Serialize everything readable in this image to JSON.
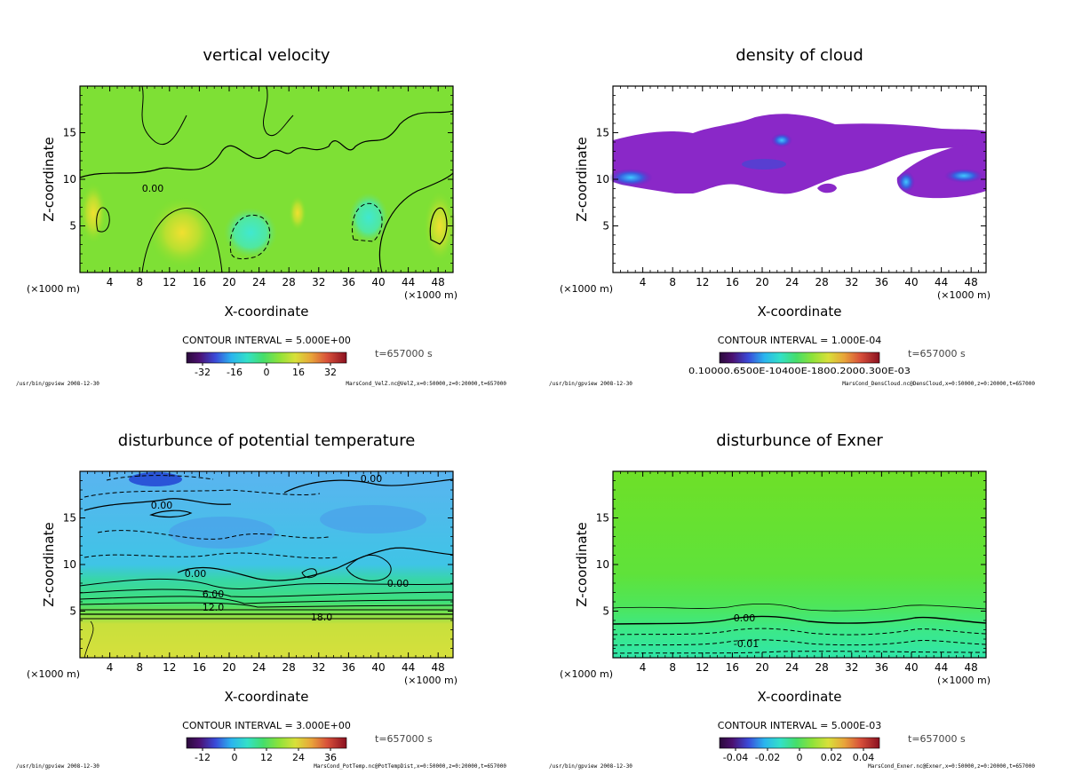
{
  "chart_data": [
    {
      "type": "contour",
      "title": "vertical velocity",
      "xlabel": "X-coordinate",
      "ylabel": "Z-coordinate",
      "x_unit": "(×1000 m)",
      "xlim": [
        0,
        50
      ],
      "ylim": [
        0,
        20
      ],
      "xticks": [
        4,
        8,
        12,
        16,
        20,
        24,
        28,
        32,
        36,
        40,
        44,
        48
      ],
      "yticks": [
        5,
        10,
        15
      ],
      "contour_interval": "CONTOUR INTERVAL = 5.000E+00",
      "contour_labels": [
        "0.00"
      ],
      "colorbar_ticks": [
        "-32",
        "-16",
        "0",
        "16",
        "32"
      ],
      "time": "t=657000 s",
      "footer_left": "/usr/bin/gpview  2008-12-30",
      "footer_right": "MarsCond_VelZ.nc@VelZ,x=0:50000,z=0:20000,t=657000"
    },
    {
      "type": "shaded",
      "title": "density of cloud",
      "xlabel": "X-coordinate",
      "ylabel": "Z-coordinate",
      "x_unit": "(×1000 m)",
      "xlim": [
        0,
        50
      ],
      "ylim": [
        0,
        20
      ],
      "xticks": [
        4,
        8,
        12,
        16,
        20,
        24,
        28,
        32,
        36,
        40,
        44,
        48
      ],
      "yticks": [
        5,
        10,
        15
      ],
      "contour_interval": "CONTOUR INTERVAL = 1.000E-04",
      "colorbar_ticks": [
        "0.10000.6500E-10400E-1800.2000.300E-03"
      ],
      "time": "t=657000 s",
      "footer_left": "/usr/bin/gpview  2008-12-30",
      "footer_right": "MarsCond_DensCloud.nc@DensCloud,x=0:50000,z=0:20000,t=657000"
    },
    {
      "type": "contour",
      "title": "disturbunce of potential temperature",
      "xlabel": "X-coordinate",
      "ylabel": "Z-coordinate",
      "x_unit": "(×1000 m)",
      "xlim": [
        0,
        50
      ],
      "ylim": [
        0,
        20
      ],
      "xticks": [
        4,
        8,
        12,
        16,
        20,
        24,
        28,
        32,
        36,
        40,
        44,
        48
      ],
      "yticks": [
        5,
        10,
        15
      ],
      "contour_interval": "CONTOUR INTERVAL = 3.000E+00",
      "contour_labels": [
        "0.00",
        "0.00",
        "0.00",
        "0.00",
        "6.00",
        "12.0",
        "18.0"
      ],
      "colorbar_ticks": [
        "-12",
        "0",
        "12",
        "24",
        "36"
      ],
      "time": "t=657000 s",
      "footer_left": "/usr/bin/gpview  2008-12-30",
      "footer_right": "MarsCond_PotTemp.nc@PotTempDist,x=0:50000,z=0:20000,t=657000"
    },
    {
      "type": "contour",
      "title": "disturbunce of Exner",
      "xlabel": "X-coordinate",
      "ylabel": "Z-coordinate",
      "x_unit": "(×1000 m)",
      "xlim": [
        0,
        50
      ],
      "ylim": [
        0,
        20
      ],
      "xticks": [
        4,
        8,
        12,
        16,
        20,
        24,
        28,
        32,
        36,
        40,
        44,
        48
      ],
      "yticks": [
        5,
        10,
        15
      ],
      "contour_interval": "CONTOUR INTERVAL = 5.000E-03",
      "contour_labels": [
        "0.00",
        "-0.01"
      ],
      "colorbar_ticks": [
        "-0.04",
        "-0.02",
        "0",
        "0.02",
        "0.04"
      ],
      "time": "t=657000 s",
      "footer_left": "/usr/bin/gpview  2008-12-30",
      "footer_right": "MarsCond_Exner.nc@Exner,x=0:50000,z=0:20000,t=657000"
    }
  ]
}
